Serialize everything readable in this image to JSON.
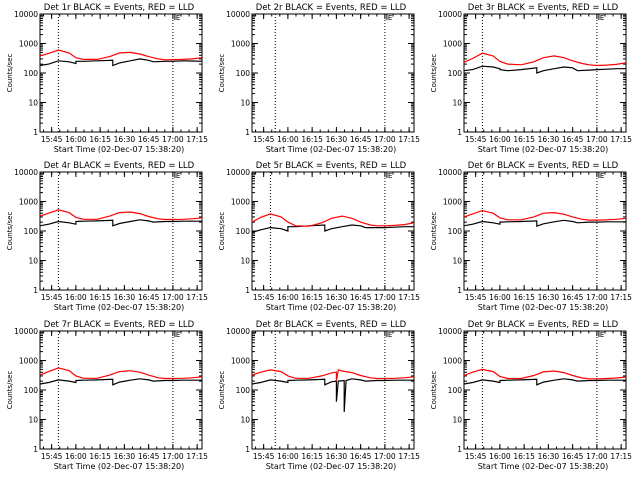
{
  "chart_data": [
    {
      "type": "line",
      "title": "Det 1r BLACK = Events, RED = LLD",
      "xlabel": "Start Time (02-Dec-07 15:38:20)",
      "ylabel": "Counts/sec",
      "ylim": [
        1,
        10000
      ],
      "yscale": "log",
      "ytick_labels": [
        "1",
        "10",
        "100",
        "1000",
        "10000"
      ],
      "xlim": [
        15.63,
        17.3
      ],
      "xtick_labels": [
        "15:45",
        "16:00",
        "16:15",
        "16:30",
        "16:45",
        "17:00",
        "17:15"
      ],
      "marker_label": "E",
      "vlines": [
        15.82,
        17.0
      ],
      "series": [
        {
          "name": "Events",
          "color": "#000000",
          "x": [
            15.63,
            15.72,
            15.82,
            15.93,
            16.0,
            16.0,
            16.08,
            16.22,
            16.38,
            16.38,
            16.45,
            16.56,
            16.66,
            16.75,
            16.8,
            16.92,
            17.0,
            17.1,
            17.2,
            17.3
          ],
          "y": [
            180,
            200,
            260,
            240,
            210,
            250,
            250,
            260,
            270,
            180,
            220,
            260,
            300,
            270,
            240,
            250,
            250,
            260,
            255,
            250
          ]
        },
        {
          "name": "LLD",
          "color": "#ff0000",
          "x": [
            15.63,
            15.72,
            15.82,
            15.93,
            16.0,
            16.08,
            16.22,
            16.35,
            16.45,
            16.56,
            16.66,
            16.75,
            16.85,
            16.92,
            17.0,
            17.1,
            17.2,
            17.3
          ],
          "y": [
            380,
            460,
            600,
            480,
            330,
            290,
            290,
            360,
            480,
            500,
            440,
            360,
            300,
            280,
            285,
            290,
            300,
            330
          ]
        }
      ]
    },
    {
      "type": "line",
      "title": "Det 2r BLACK = Events, RED = LLD",
      "xlabel": "Start Time (02-Dec-07 15:38:20)",
      "ylabel": "Counts/sec",
      "ylim": [
        1,
        10000
      ],
      "yscale": "log",
      "ytick_labels": [
        "1",
        "10",
        "100",
        "1000",
        "10000"
      ],
      "xlim": [
        15.63,
        17.3
      ],
      "xtick_labels": [
        "15:45",
        "16:00",
        "16:15",
        "16:30",
        "16:45",
        "17:00",
        "17:15"
      ],
      "marker_label": "E",
      "vlines": [
        15.87,
        17.0
      ],
      "series": []
    },
    {
      "type": "line",
      "title": "Det 3r BLACK = Events, RED = LLD",
      "xlabel": "Start Time (02-Dec-07 15:38:20)",
      "ylabel": "Counts/sec",
      "ylim": [
        1,
        10000
      ],
      "yscale": "log",
      "ytick_labels": [
        "1",
        "10",
        "100",
        "1000",
        "10000"
      ],
      "xlim": [
        15.63,
        17.3
      ],
      "xtick_labels": [
        "15:45",
        "16:00",
        "16:15",
        "16:30",
        "16:45",
        "17:00",
        "17:15"
      ],
      "marker_label": "E",
      "vlines": [
        15.82,
        17.0
      ],
      "series": [
        {
          "name": "Events",
          "color": "#000000",
          "x": [
            15.63,
            15.72,
            15.82,
            15.93,
            16.0,
            16.0,
            16.08,
            16.22,
            16.38,
            16.38,
            16.45,
            16.56,
            16.66,
            16.75,
            16.8,
            16.92,
            17.0,
            17.1,
            17.2,
            17.3
          ],
          "y": [
            120,
            130,
            170,
            160,
            140,
            130,
            120,
            130,
            150,
            100,
            120,
            140,
            160,
            150,
            120,
            125,
            130,
            135,
            140,
            140
          ]
        },
        {
          "name": "LLD",
          "color": "#ff0000",
          "x": [
            15.63,
            15.72,
            15.82,
            15.93,
            16.0,
            16.08,
            16.22,
            16.35,
            16.45,
            16.56,
            16.66,
            16.75,
            16.85,
            16.92,
            17.0,
            17.1,
            17.2,
            17.3
          ],
          "y": [
            230,
            310,
            470,
            380,
            250,
            200,
            190,
            240,
            330,
            380,
            330,
            260,
            210,
            190,
            180,
            185,
            195,
            220
          ]
        }
      ]
    },
    {
      "type": "line",
      "title": "Det 4r BLACK = Events, RED = LLD",
      "xlabel": "Start Time (02-Dec-07 15:38:20)",
      "ylabel": "Counts/sec",
      "ylim": [
        1,
        10000
      ],
      "yscale": "log",
      "ytick_labels": [
        "1",
        "10",
        "100",
        "1000",
        "10000"
      ],
      "xlim": [
        15.63,
        17.3
      ],
      "xtick_labels": [
        "15:45",
        "16:00",
        "16:15",
        "16:30",
        "16:45",
        "17:00",
        "17:15"
      ],
      "marker_label": "E",
      "vlines": [
        15.82,
        17.0
      ],
      "series": [
        {
          "name": "Events",
          "color": "#000000",
          "x": [
            15.63,
            15.72,
            15.82,
            15.93,
            16.0,
            16.0,
            16.08,
            16.22,
            16.38,
            16.38,
            16.45,
            16.56,
            16.66,
            16.75,
            16.8,
            16.92,
            17.0,
            17.1,
            17.2,
            17.3
          ],
          "y": [
            150,
            170,
            210,
            190,
            170,
            210,
            215,
            220,
            230,
            150,
            180,
            210,
            240,
            220,
            200,
            210,
            210,
            215,
            215,
            215
          ]
        },
        {
          "name": "LLD",
          "color": "#ff0000",
          "x": [
            15.63,
            15.72,
            15.82,
            15.93,
            16.0,
            16.08,
            16.22,
            16.35,
            16.45,
            16.56,
            16.66,
            16.75,
            16.85,
            16.92,
            17.0,
            17.1,
            17.2,
            17.3
          ],
          "y": [
            320,
            400,
            520,
            420,
            290,
            250,
            250,
            320,
            420,
            440,
            390,
            310,
            260,
            245,
            245,
            250,
            260,
            280
          ]
        }
      ]
    },
    {
      "type": "line",
      "title": "Det 5r BLACK = Events, RED = LLD",
      "xlabel": "Start Time (02-Dec-07 15:38:20)",
      "ylabel": "Counts/sec",
      "ylim": [
        1,
        10000
      ],
      "yscale": "log",
      "ytick_labels": [
        "1",
        "10",
        "100",
        "1000",
        "10000"
      ],
      "xlim": [
        15.63,
        17.3
      ],
      "xtick_labels": [
        "15:45",
        "16:00",
        "16:15",
        "16:30",
        "16:45",
        "17:00",
        "17:15"
      ],
      "marker_label": "E",
      "vlines": [
        15.82,
        17.0
      ],
      "series": [
        {
          "name": "Events",
          "color": "#000000",
          "x": [
            15.63,
            15.72,
            15.82,
            15.93,
            16.0,
            16.0,
            16.08,
            16.22,
            16.38,
            16.38,
            16.45,
            16.56,
            16.66,
            16.75,
            16.8,
            16.92,
            17.0,
            17.1,
            17.2,
            17.3
          ],
          "y": [
            90,
            110,
            130,
            120,
            100,
            140,
            140,
            150,
            160,
            100,
            120,
            140,
            160,
            150,
            130,
            130,
            130,
            135,
            140,
            140
          ]
        },
        {
          "name": "LLD",
          "color": "#ff0000",
          "x": [
            15.63,
            15.72,
            15.82,
            15.93,
            16.0,
            16.08,
            16.22,
            16.35,
            16.45,
            16.56,
            16.66,
            16.75,
            16.85,
            16.92,
            17.0,
            17.1,
            17.2,
            17.3
          ],
          "y": [
            200,
            290,
            380,
            300,
            200,
            150,
            145,
            190,
            270,
            320,
            270,
            200,
            160,
            150,
            150,
            155,
            165,
            190
          ]
        }
      ]
    },
    {
      "type": "line",
      "title": "Det 6r BLACK = Events, RED = LLD",
      "xlabel": "Start Time (02-Dec-07 15:38:20)",
      "ylabel": "Counts/sec",
      "ylim": [
        1,
        10000
      ],
      "yscale": "log",
      "ytick_labels": [
        "1",
        "10",
        "100",
        "1000",
        "10000"
      ],
      "xlim": [
        15.63,
        17.3
      ],
      "xtick_labels": [
        "15:45",
        "16:00",
        "16:15",
        "16:30",
        "16:45",
        "17:00",
        "17:15"
      ],
      "marker_label": "E",
      "vlines": [
        15.82,
        17.0
      ],
      "series": [
        {
          "name": "Events",
          "color": "#000000",
          "x": [
            15.63,
            15.72,
            15.82,
            15.93,
            16.0,
            16.0,
            16.08,
            16.22,
            16.38,
            16.38,
            16.45,
            16.56,
            16.66,
            16.75,
            16.8,
            16.92,
            17.0,
            17.1,
            17.2,
            17.3
          ],
          "y": [
            150,
            170,
            210,
            190,
            170,
            200,
            205,
            210,
            220,
            145,
            175,
            205,
            230,
            210,
            190,
            200,
            200,
            205,
            205,
            205
          ]
        },
        {
          "name": "LLD",
          "color": "#ff0000",
          "x": [
            15.63,
            15.72,
            15.82,
            15.93,
            16.0,
            16.08,
            16.22,
            16.35,
            16.45,
            16.56,
            16.66,
            16.75,
            16.85,
            16.92,
            17.0,
            17.1,
            17.2,
            17.3
          ],
          "y": [
            300,
            380,
            490,
            400,
            280,
            240,
            240,
            300,
            400,
            420,
            370,
            300,
            250,
            235,
            235,
            240,
            250,
            270
          ]
        }
      ]
    },
    {
      "type": "line",
      "title": "Det 7r BLACK = Events, RED = LLD",
      "xlabel": "Start Time (02-Dec-07 15:38:20)",
      "ylabel": "Counts/sec",
      "ylim": [
        1,
        10000
      ],
      "yscale": "log",
      "ytick_labels": [
        "1",
        "10",
        "100",
        "1000",
        "10000"
      ],
      "xlim": [
        15.63,
        17.3
      ],
      "xtick_labels": [
        "15:45",
        "16:00",
        "16:15",
        "16:30",
        "16:45",
        "17:00",
        "17:15"
      ],
      "marker_label": "E",
      "vlines": [
        15.82,
        17.0
      ],
      "series": [
        {
          "name": "Events",
          "color": "#000000",
          "x": [
            15.63,
            15.72,
            15.82,
            15.93,
            16.0,
            16.0,
            16.08,
            16.22,
            16.38,
            16.38,
            16.45,
            16.56,
            16.66,
            16.75,
            16.8,
            16.92,
            17.0,
            17.1,
            17.2,
            17.3
          ],
          "y": [
            160,
            180,
            220,
            200,
            180,
            210,
            215,
            220,
            230,
            150,
            185,
            215,
            240,
            220,
            200,
            210,
            210,
            215,
            215,
            215
          ]
        },
        {
          "name": "LLD",
          "color": "#ff0000",
          "x": [
            15.63,
            15.72,
            15.82,
            15.93,
            16.0,
            16.08,
            16.22,
            16.35,
            16.45,
            16.56,
            16.66,
            16.75,
            16.85,
            16.92,
            17.0,
            17.1,
            17.2,
            17.3
          ],
          "y": [
            320,
            420,
            560,
            450,
            300,
            250,
            250,
            320,
            420,
            450,
            400,
            320,
            260,
            245,
            245,
            250,
            260,
            280
          ]
        }
      ]
    },
    {
      "type": "line",
      "title": "Det 8r BLACK = Events, RED = LLD",
      "xlabel": "Start Time (02-Dec-07 15:38:20)",
      "ylabel": "Counts/sec",
      "ylim": [
        1,
        10000
      ],
      "yscale": "log",
      "ytick_labels": [
        "1",
        "10",
        "100",
        "1000",
        "10000"
      ],
      "xlim": [
        15.63,
        17.3
      ],
      "xtick_labels": [
        "15:45",
        "16:00",
        "16:15",
        "16:30",
        "16:45",
        "17:00",
        "17:15"
      ],
      "marker_label": "E",
      "vlines": [
        15.87,
        17.0
      ],
      "series": [
        {
          "name": "Events",
          "color": "#000000",
          "x": [
            15.63,
            15.72,
            15.82,
            15.93,
            16.0,
            16.0,
            16.08,
            16.22,
            16.38,
            16.38,
            16.45,
            16.5,
            16.5,
            16.52,
            16.58,
            16.58,
            16.6,
            16.66,
            16.75,
            16.8,
            16.92,
            17.0,
            17.1,
            17.2,
            17.3
          ],
          "y": [
            160,
            180,
            220,
            200,
            180,
            210,
            215,
            220,
            230,
            150,
            190,
            200,
            40,
            200,
            210,
            18,
            210,
            240,
            220,
            200,
            210,
            210,
            215,
            215,
            215
          ]
        },
        {
          "name": "LLD",
          "color": "#ff0000",
          "x": [
            15.63,
            15.72,
            15.82,
            15.93,
            16.0,
            16.08,
            16.22,
            16.35,
            16.45,
            16.5,
            16.5,
            16.52,
            16.56,
            16.66,
            16.75,
            16.85,
            16.92,
            17.0,
            17.1,
            17.2,
            17.3
          ],
          "y": [
            320,
            400,
            480,
            420,
            300,
            250,
            250,
            300,
            380,
            400,
            200,
            480,
            440,
            390,
            310,
            260,
            245,
            245,
            250,
            260,
            280
          ]
        }
      ]
    },
    {
      "type": "line",
      "title": "Det 9r BLACK = Events, RED = LLD",
      "xlabel": "Start Time (02-Dec-07 15:38:20)",
      "ylabel": "Counts/sec",
      "ylim": [
        1,
        10000
      ],
      "yscale": "log",
      "ytick_labels": [
        "1",
        "10",
        "100",
        "1000",
        "10000"
      ],
      "xlim": [
        15.63,
        17.3
      ],
      "xtick_labels": [
        "15:45",
        "16:00",
        "16:15",
        "16:30",
        "16:45",
        "17:00",
        "17:15"
      ],
      "marker_label": "E",
      "vlines": [
        15.82,
        17.0
      ],
      "series": [
        {
          "name": "Events",
          "color": "#000000",
          "x": [
            15.63,
            15.72,
            15.82,
            15.93,
            16.0,
            16.0,
            16.08,
            16.22,
            16.38,
            16.38,
            16.45,
            16.56,
            16.66,
            16.75,
            16.8,
            16.92,
            17.0,
            17.1,
            17.2,
            17.3
          ],
          "y": [
            160,
            180,
            220,
            200,
            180,
            210,
            215,
            220,
            230,
            150,
            185,
            215,
            240,
            220,
            200,
            210,
            210,
            215,
            215,
            215
          ]
        },
        {
          "name": "LLD",
          "color": "#ff0000",
          "x": [
            15.63,
            15.72,
            15.82,
            15.93,
            16.0,
            16.08,
            16.22,
            16.35,
            16.45,
            16.56,
            16.66,
            16.75,
            16.85,
            16.92,
            17.0,
            17.1,
            17.2,
            17.3
          ],
          "y": [
            310,
            400,
            500,
            420,
            290,
            245,
            245,
            310,
            410,
            440,
            390,
            310,
            255,
            240,
            240,
            245,
            255,
            275
          ]
        }
      ]
    }
  ]
}
